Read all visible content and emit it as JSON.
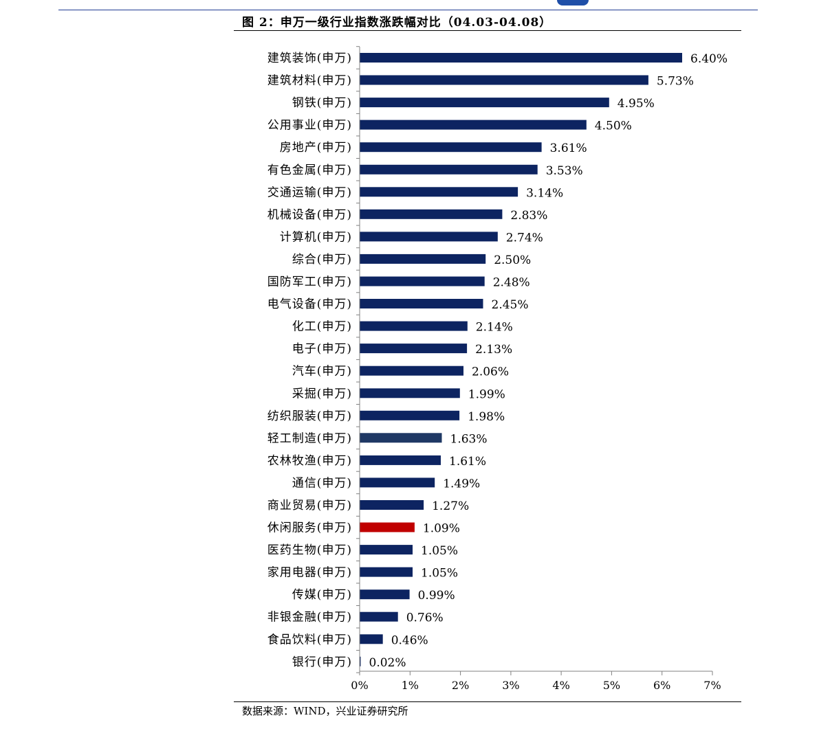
{
  "figure_title": "图 2：申万一级行业指数涨跌幅对比（04.03-04.08）",
  "source_note": "数据来源：WIND，兴业证券研究所",
  "colors": {
    "bar_default": "#0d2461",
    "bar_highlight": "#c00000",
    "bar_alt": "#1f3864",
    "axis": "#808080",
    "rule": "#1f3a93"
  },
  "chart_data": {
    "type": "bar",
    "orientation": "horizontal",
    "title": "申万一级行业指数涨跌幅对比（04.03-04.08）",
    "xlabel": "",
    "ylabel": "",
    "xlim": [
      0,
      7
    ],
    "x_ticks": [
      0,
      1,
      2,
      3,
      4,
      5,
      6,
      7
    ],
    "x_tick_labels": [
      "0%",
      "1%",
      "2%",
      "3%",
      "4%",
      "5%",
      "6%",
      "7%"
    ],
    "grid": false,
    "highlight_categories": [
      "休闲服务(申万)"
    ],
    "alt_color_categories": [
      "轻工制造(申万)"
    ],
    "categories": [
      "建筑装饰(申万)",
      "建筑材料(申万)",
      "钢铁(申万)",
      "公用事业(申万)",
      "房地产(申万)",
      "有色金属(申万)",
      "交通运输(申万)",
      "机械设备(申万)",
      "计算机(申万)",
      "综合(申万)",
      "国防军工(申万)",
      "电气设备(申万)",
      "化工(申万)",
      "电子(申万)",
      "汽车(申万)",
      "采掘(申万)",
      "纺织服装(申万)",
      "轻工制造(申万)",
      "农林牧渔(申万)",
      "通信(申万)",
      "商业贸易(申万)",
      "休闲服务(申万)",
      "医药生物(申万)",
      "家用电器(申万)",
      "传媒(申万)",
      "非银金融(申万)",
      "食品饮料(申万)",
      "银行(申万)"
    ],
    "values": [
      6.4,
      5.73,
      4.95,
      4.5,
      3.61,
      3.53,
      3.14,
      2.83,
      2.74,
      2.5,
      2.48,
      2.45,
      2.14,
      2.13,
      2.06,
      1.99,
      1.98,
      1.63,
      1.61,
      1.49,
      1.27,
      1.09,
      1.05,
      1.05,
      0.99,
      0.76,
      0.46,
      0.02
    ],
    "value_labels": [
      "6.40%",
      "5.73%",
      "4.95%",
      "4.50%",
      "3.61%",
      "3.53%",
      "3.14%",
      "2.83%",
      "2.74%",
      "2.50%",
      "2.48%",
      "2.45%",
      "2.14%",
      "2.13%",
      "2.06%",
      "1.99%",
      "1.98%",
      "1.63%",
      "1.61%",
      "1.49%",
      "1.27%",
      "1.09%",
      "1.05%",
      "1.05%",
      "0.99%",
      "0.76%",
      "0.46%",
      "0.02%"
    ]
  }
}
